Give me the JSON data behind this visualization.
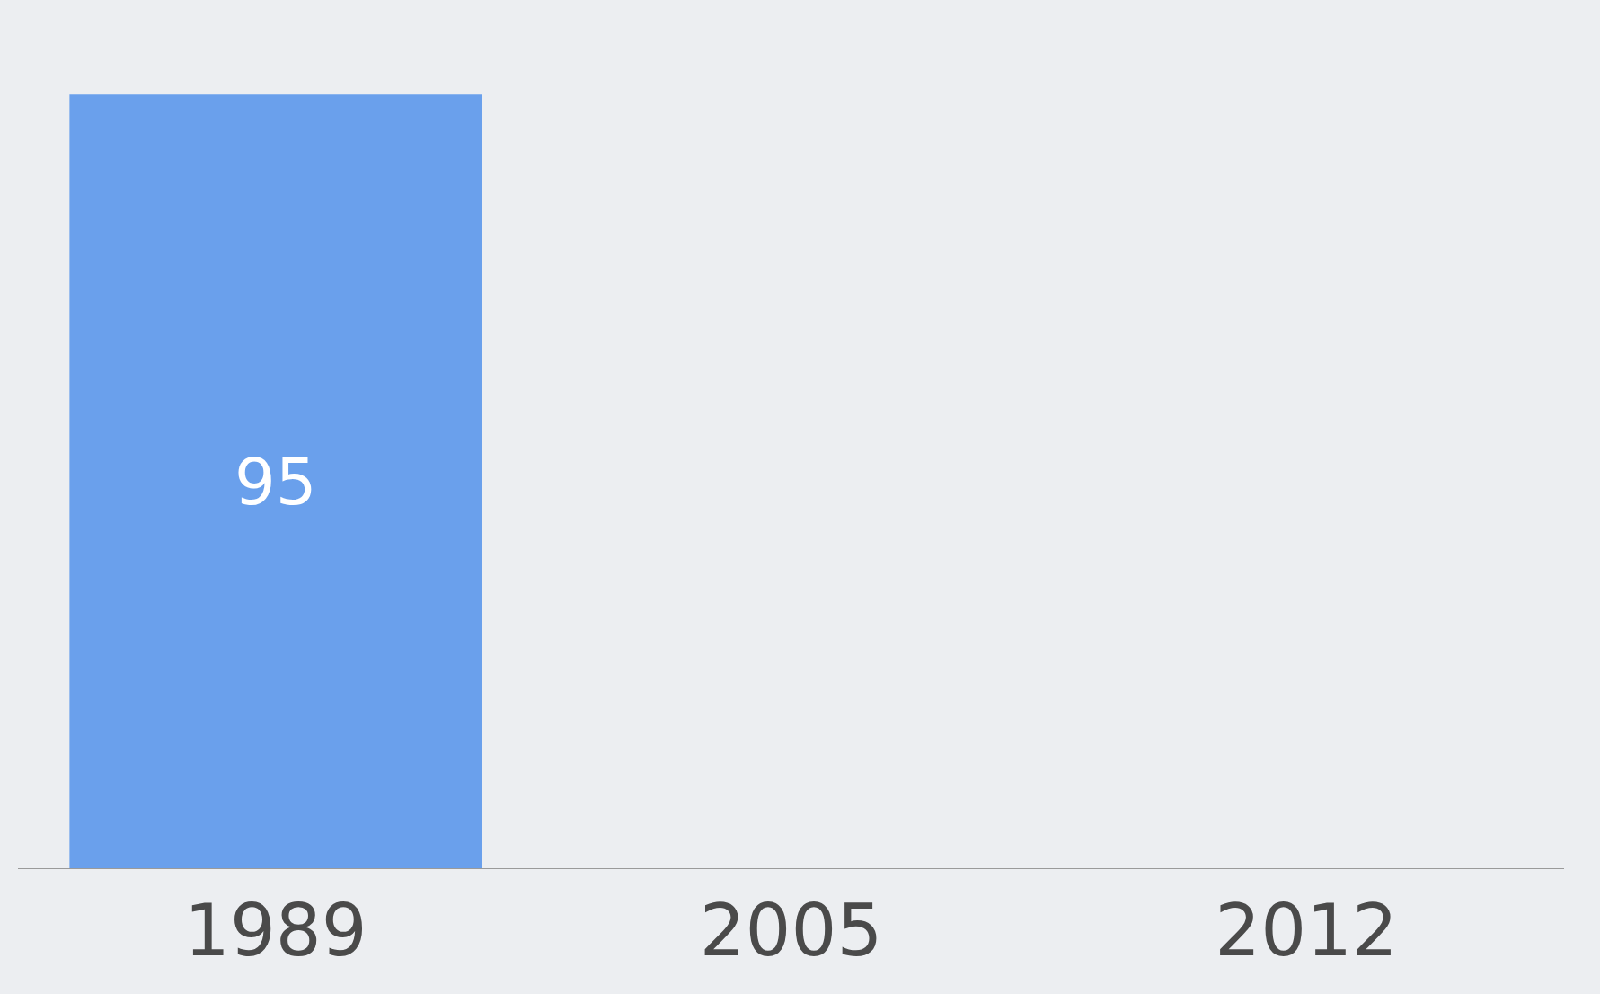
{
  "chart_data": {
    "type": "bar",
    "categories": [
      "1989",
      "2005",
      "2012"
    ],
    "values": [
      95,
      null,
      null
    ],
    "color": "#6aa0ec",
    "data_labels": true
  }
}
